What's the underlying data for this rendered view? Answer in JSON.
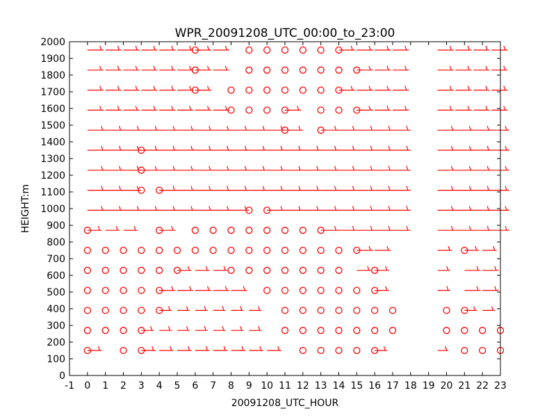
{
  "chart_data": {
    "type": "wind-barb",
    "title": "WPR_20091208_UTC_00:00_to_23:00",
    "xlabel": "20091208_UTC_HOUR",
    "ylabel": "HEIGHT:m",
    "xlim": [
      -1,
      23
    ],
    "ylim": [
      0,
      2000
    ],
    "x_ticks": [
      -1,
      0,
      1,
      2,
      3,
      4,
      5,
      6,
      7,
      8,
      9,
      10,
      11,
      12,
      13,
      14,
      15,
      16,
      17,
      18,
      19,
      20,
      21,
      22,
      23
    ],
    "y_ticks": [
      0,
      100,
      200,
      300,
      400,
      500,
      600,
      700,
      800,
      900,
      1000,
      1100,
      1200,
      1300,
      1400,
      1500,
      1600,
      1700,
      1800,
      1900,
      2000
    ],
    "heights": [
      150,
      270,
      390,
      510,
      630,
      750,
      870,
      990,
      1110,
      1230,
      1350,
      1470,
      1590,
      1710,
      1830,
      1950
    ],
    "barb_color": "#ff0000",
    "calm_marker": "circle",
    "rows": [
      {
        "height": 150,
        "calm": [
          0,
          2,
          3,
          12,
          13,
          14,
          15,
          16,
          21,
          22,
          23
        ],
        "barbs": [
          [
            0,
            8
          ],
          [
            3,
            8
          ],
          [
            4,
            8
          ],
          [
            5,
            8
          ],
          [
            6,
            8
          ],
          [
            7,
            8
          ],
          [
            8,
            8
          ],
          [
            9,
            8
          ],
          [
            10,
            8
          ],
          [
            16,
            7
          ],
          [
            19.5,
            6
          ]
        ]
      },
      {
        "height": 270,
        "calm": [
          0,
          1,
          2,
          3,
          11,
          12,
          13,
          14,
          15,
          16,
          17,
          20,
          21,
          22,
          23
        ],
        "barbs": [
          [
            3,
            7
          ],
          [
            4,
            7
          ],
          [
            5,
            7
          ],
          [
            6,
            7
          ],
          [
            7,
            7
          ],
          [
            8,
            7
          ],
          [
            9,
            7
          ]
        ]
      },
      {
        "height": 390,
        "calm": [
          0,
          1,
          2,
          3,
          4,
          11,
          12,
          13,
          14,
          15,
          16,
          17,
          20,
          21
        ],
        "barbs": [
          [
            4,
            7
          ],
          [
            5,
            7
          ],
          [
            6,
            7
          ],
          [
            7,
            7
          ],
          [
            8,
            7
          ],
          [
            9,
            7
          ],
          [
            21,
            7
          ],
          [
            22,
            7
          ]
        ]
      },
      {
        "height": 510,
        "calm": [
          0,
          1,
          2,
          3,
          4,
          10,
          11,
          12,
          13,
          14,
          15,
          16
        ],
        "barbs": [
          [
            4,
            9
          ],
          [
            5,
            9
          ],
          [
            6,
            9
          ],
          [
            7,
            9
          ],
          [
            8,
            9
          ],
          [
            16,
            8
          ],
          [
            19.5,
            7
          ],
          [
            21,
            9
          ],
          [
            22,
            9
          ]
        ]
      },
      {
        "height": 630,
        "calm": [
          0,
          1,
          2,
          3,
          4,
          5,
          8,
          9,
          10,
          11,
          12,
          13,
          14,
          16
        ],
        "barbs": [
          [
            5,
            8
          ],
          [
            6,
            8
          ],
          [
            7,
            8
          ],
          [
            15,
            8
          ],
          [
            16,
            8
          ],
          [
            19.5,
            7
          ],
          [
            21,
            9
          ],
          [
            22,
            9
          ]
        ]
      },
      {
        "height": 750,
        "calm": [
          0,
          1,
          2,
          3,
          4,
          5,
          6,
          7,
          8,
          9,
          10,
          11,
          12,
          13,
          14,
          15,
          21
        ],
        "barbs": [
          [
            15,
            9
          ],
          [
            16,
            9
          ],
          [
            19.5,
            8
          ],
          [
            21,
            8
          ],
          [
            22,
            8
          ]
        ]
      },
      {
        "height": 870,
        "calm": [
          0,
          4,
          6,
          7,
          8,
          9,
          10,
          11,
          12,
          13
        ],
        "barbs": [
          [
            0,
            8
          ],
          [
            1,
            8
          ],
          [
            2,
            8
          ],
          [
            4,
            9
          ],
          [
            13,
            10
          ],
          [
            14,
            10
          ],
          [
            15,
            10
          ],
          [
            16,
            10
          ],
          [
            17,
            10
          ],
          [
            19.5,
            10
          ],
          [
            20.5,
            10
          ],
          [
            21.5,
            10
          ],
          [
            22.5,
            10
          ]
        ]
      },
      {
        "height": 990,
        "calm": [
          9,
          10
        ],
        "barbs": [
          [
            0,
            10
          ],
          [
            1,
            10
          ],
          [
            2,
            10
          ],
          [
            3,
            10
          ],
          [
            4,
            10
          ],
          [
            5,
            10
          ],
          [
            6,
            10
          ],
          [
            7,
            10
          ],
          [
            8,
            10
          ],
          [
            10,
            10
          ],
          [
            11,
            10
          ],
          [
            12,
            10
          ],
          [
            13,
            10
          ],
          [
            14,
            10
          ],
          [
            15,
            10
          ],
          [
            16,
            10
          ],
          [
            17,
            10
          ],
          [
            19.5,
            10
          ],
          [
            20.5,
            10
          ],
          [
            21.5,
            10
          ],
          [
            22.5,
            10
          ]
        ]
      },
      {
        "height": 1110,
        "calm": [
          3,
          4
        ],
        "barbs": [
          [
            0,
            10
          ],
          [
            1,
            10
          ],
          [
            2,
            10
          ],
          [
            4,
            10
          ],
          [
            5,
            10
          ],
          [
            6,
            10
          ],
          [
            7,
            10
          ],
          [
            8,
            10
          ],
          [
            9,
            10
          ],
          [
            10,
            10
          ],
          [
            11,
            10
          ],
          [
            12,
            10
          ],
          [
            13,
            10
          ],
          [
            14,
            10
          ],
          [
            15,
            10
          ],
          [
            16,
            10
          ],
          [
            17,
            10
          ],
          [
            19.5,
            10
          ],
          [
            20.5,
            10
          ],
          [
            21.5,
            10
          ],
          [
            22.5,
            10
          ]
        ]
      },
      {
        "height": 1230,
        "calm": [
          3
        ],
        "barbs": [
          [
            0,
            10
          ],
          [
            1,
            10
          ],
          [
            2,
            10
          ],
          [
            3,
            10
          ],
          [
            4,
            10
          ],
          [
            5,
            10
          ],
          [
            6,
            10
          ],
          [
            7,
            10
          ],
          [
            8,
            10
          ],
          [
            9,
            10
          ],
          [
            10,
            10
          ],
          [
            11,
            10
          ],
          [
            12,
            10
          ],
          [
            13,
            10
          ],
          [
            14,
            10
          ],
          [
            15,
            10
          ],
          [
            16,
            10
          ],
          [
            17,
            10
          ],
          [
            19.5,
            10
          ],
          [
            20.5,
            10
          ],
          [
            21.5,
            10
          ],
          [
            22.5,
            10
          ]
        ]
      },
      {
        "height": 1350,
        "calm": [
          3
        ],
        "barbs": [
          [
            0,
            10
          ],
          [
            1,
            10
          ],
          [
            2,
            10
          ],
          [
            3,
            10
          ],
          [
            4,
            10
          ],
          [
            5,
            10
          ],
          [
            6,
            10
          ],
          [
            7,
            10
          ],
          [
            8,
            10
          ],
          [
            9,
            10
          ],
          [
            10,
            10
          ],
          [
            11,
            10
          ],
          [
            12,
            10
          ],
          [
            13,
            10
          ],
          [
            14,
            10
          ],
          [
            15,
            10
          ],
          [
            16,
            10
          ],
          [
            17,
            10
          ],
          [
            19.5,
            10
          ],
          [
            20.5,
            10
          ],
          [
            21.5,
            10
          ],
          [
            22.5,
            10
          ]
        ]
      },
      {
        "height": 1470,
        "calm": [
          11,
          13
        ],
        "barbs": [
          [
            0,
            10
          ],
          [
            1,
            10
          ],
          [
            2,
            10
          ],
          [
            3,
            10
          ],
          [
            4,
            10
          ],
          [
            5,
            10
          ],
          [
            6,
            10
          ],
          [
            7,
            10
          ],
          [
            8,
            10
          ],
          [
            9,
            10
          ],
          [
            10,
            10
          ],
          [
            11,
            10
          ],
          [
            13,
            10
          ],
          [
            14,
            10
          ],
          [
            15,
            10
          ],
          [
            16,
            10
          ],
          [
            17,
            10
          ],
          [
            19.5,
            10
          ],
          [
            20.5,
            10
          ],
          [
            21.5,
            10
          ],
          [
            22.5,
            10
          ]
        ]
      },
      {
        "height": 1590,
        "calm": [
          8,
          9,
          10,
          11,
          13,
          14,
          15
        ],
        "barbs": [
          [
            0,
            9
          ],
          [
            1,
            9
          ],
          [
            2,
            9
          ],
          [
            3,
            9
          ],
          [
            4,
            9
          ],
          [
            5,
            9
          ],
          [
            6,
            9
          ],
          [
            7,
            9
          ],
          [
            11,
            9
          ],
          [
            15,
            9
          ],
          [
            16,
            9
          ],
          [
            17,
            9
          ],
          [
            19.5,
            9
          ],
          [
            20.5,
            9
          ],
          [
            21.5,
            9
          ],
          [
            22.5,
            9
          ]
        ]
      },
      {
        "height": 1710,
        "calm": [
          6,
          8,
          9,
          10,
          11,
          12,
          13,
          14
        ],
        "barbs": [
          [
            0,
            9
          ],
          [
            1,
            9
          ],
          [
            2,
            9
          ],
          [
            3,
            9
          ],
          [
            4,
            9
          ],
          [
            5,
            9
          ],
          [
            6,
            9
          ],
          [
            14,
            9
          ],
          [
            15,
            9
          ],
          [
            16,
            9
          ],
          [
            17,
            9
          ],
          [
            19.5,
            9
          ],
          [
            20.5,
            9
          ],
          [
            21.5,
            9
          ],
          [
            22.5,
            9
          ]
        ]
      },
      {
        "height": 1830,
        "calm": [
          6,
          9,
          10,
          11,
          12,
          13,
          14,
          15
        ],
        "barbs": [
          [
            0,
            9
          ],
          [
            1,
            9
          ],
          [
            2,
            9
          ],
          [
            3,
            9
          ],
          [
            4,
            9
          ],
          [
            5,
            9
          ],
          [
            6,
            9
          ],
          [
            7,
            9
          ],
          [
            15,
            9
          ],
          [
            16,
            9
          ],
          [
            17,
            9
          ],
          [
            19.5,
            9
          ],
          [
            20.5,
            9
          ],
          [
            21.5,
            9
          ],
          [
            22.5,
            9
          ]
        ]
      },
      {
        "height": 1950,
        "calm": [
          6,
          9,
          10,
          11,
          12,
          13,
          14
        ],
        "barbs": [
          [
            0,
            9
          ],
          [
            1,
            9
          ],
          [
            2,
            9
          ],
          [
            3,
            9
          ],
          [
            4,
            9
          ],
          [
            5,
            9
          ],
          [
            6,
            9
          ],
          [
            7,
            9
          ],
          [
            14,
            9
          ],
          [
            15,
            9
          ],
          [
            16,
            9
          ],
          [
            17,
            9
          ],
          [
            19.5,
            9
          ],
          [
            20.5,
            9
          ],
          [
            21.5,
            9
          ],
          [
            22.5,
            9
          ]
        ]
      }
    ]
  }
}
